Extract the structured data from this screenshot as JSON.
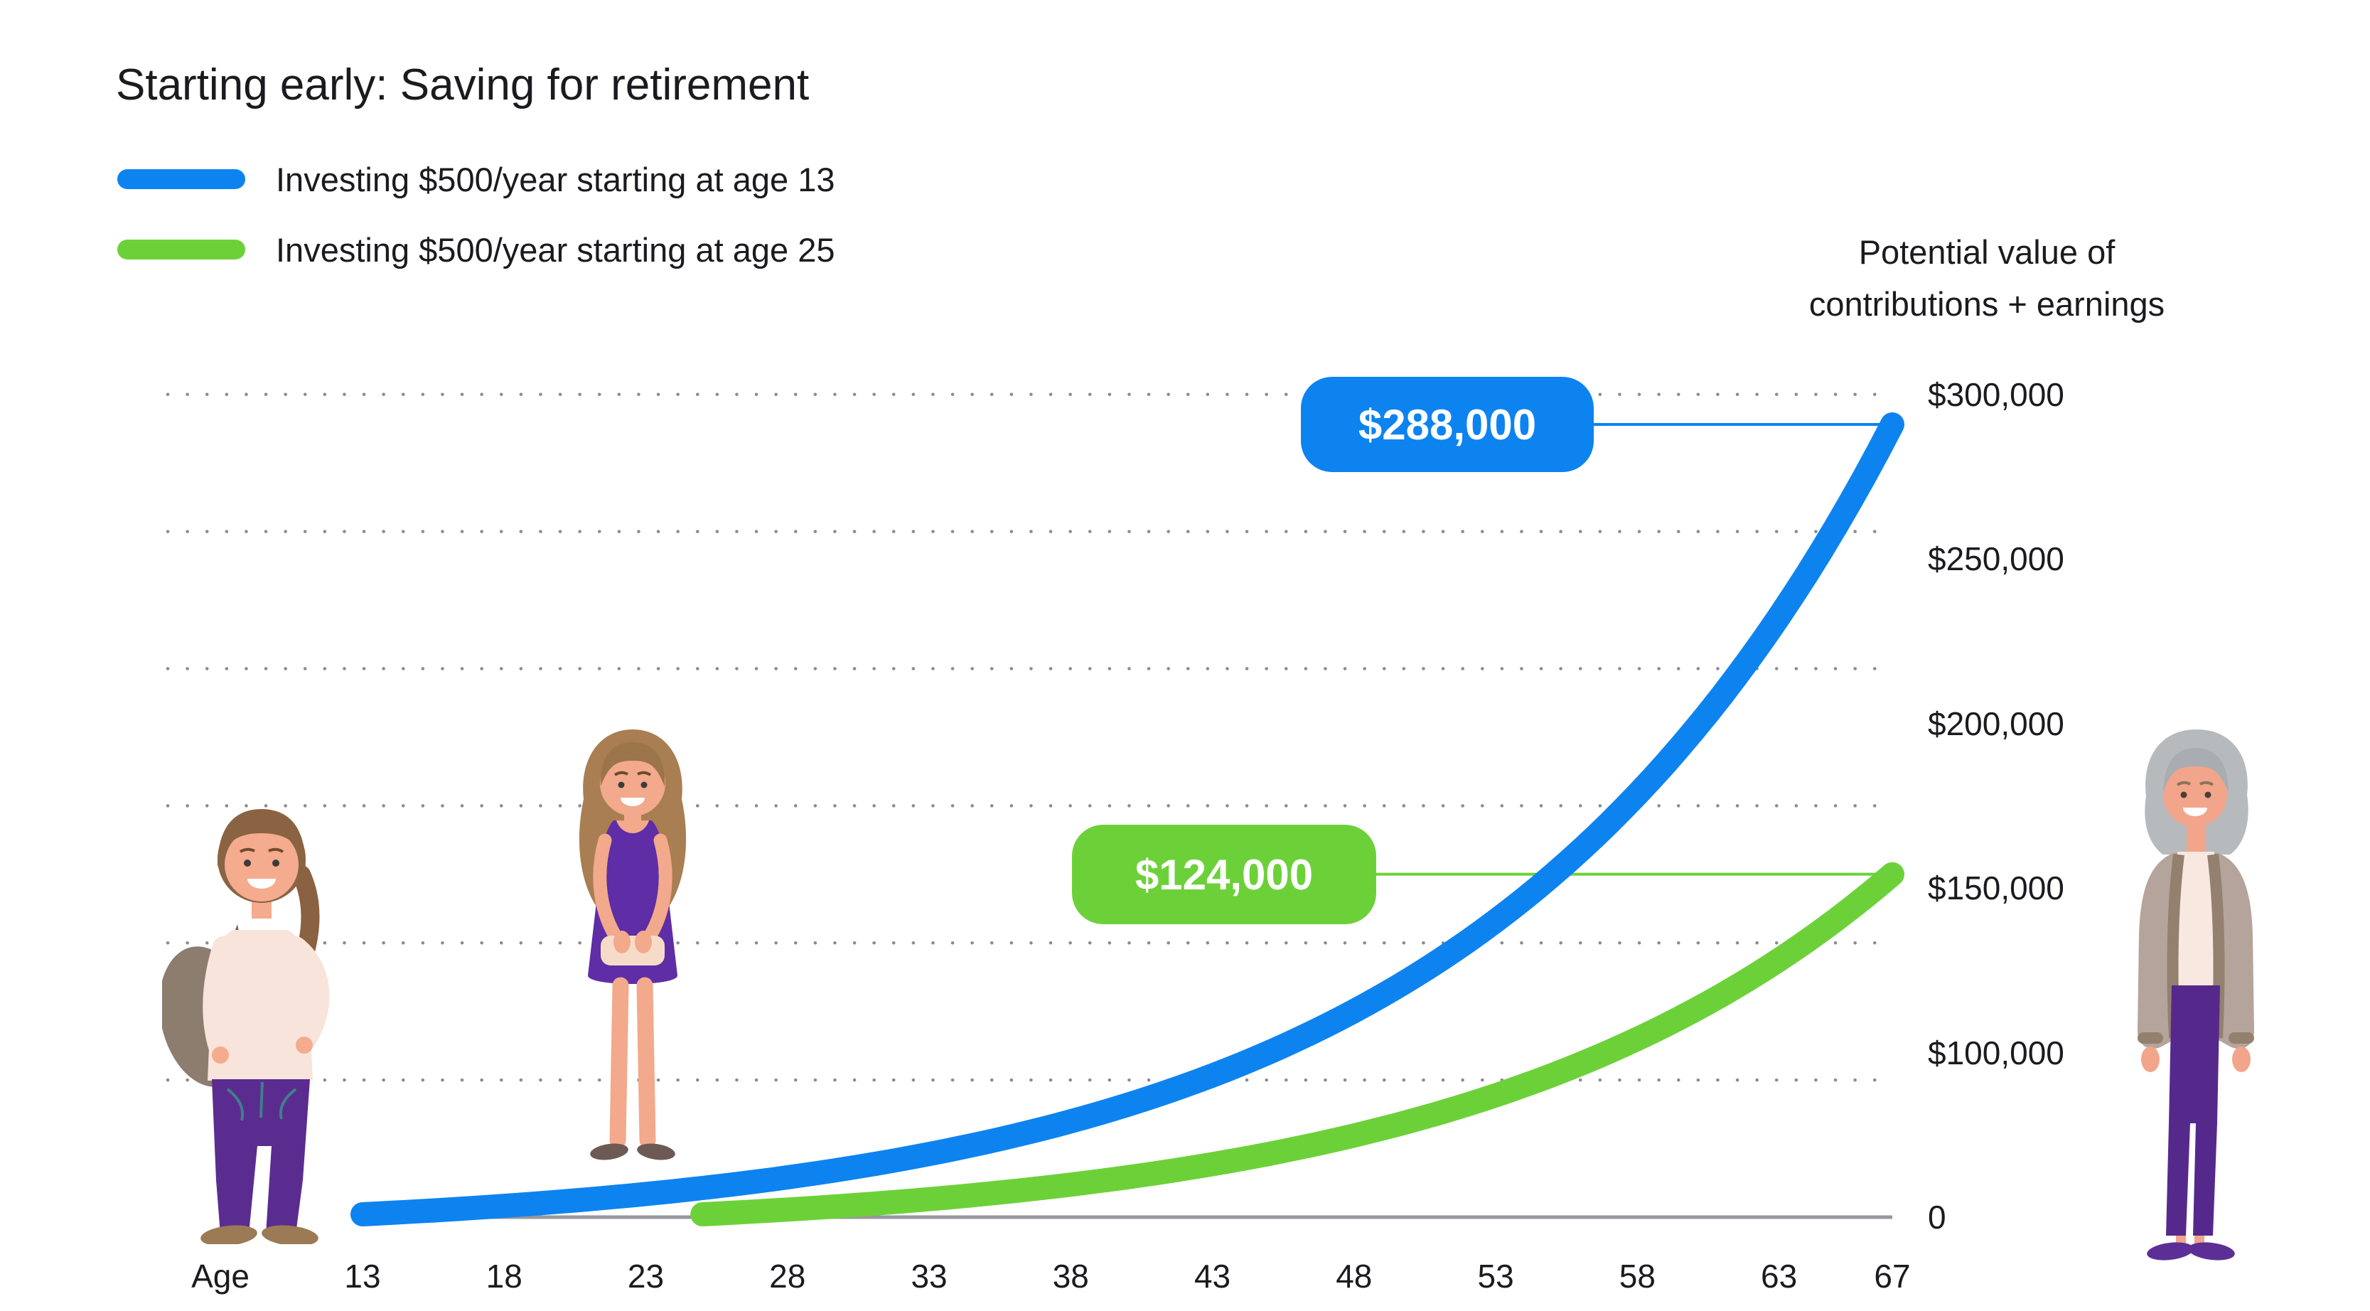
{
  "title": "Starting early: Saving for retirement",
  "legend": [
    {
      "label": "Investing $500/year starting at age 13",
      "color": "#0d83f0"
    },
    {
      "label": "Investing $500/year starting at age 25",
      "color": "#6cd139"
    }
  ],
  "y_axis_title": {
    "line1": "Potential value of",
    "line2": "contributions + earnings"
  },
  "x_axis_label": "Age",
  "callouts": [
    {
      "label": "$288,000",
      "series": "starting-at-13",
      "color": "#0d83f0"
    },
    {
      "label": "$124,000",
      "series": "starting-at-25",
      "color": "#6cd139"
    }
  ],
  "chart_data": {
    "type": "line",
    "title": "Starting early: Saving for retirement",
    "xlabel": "Age",
    "ylabel": "Potential value of contributions + earnings",
    "x_ticks": [
      13,
      18,
      23,
      28,
      33,
      38,
      43,
      48,
      53,
      58,
      63,
      67
    ],
    "y_tick_labels": [
      "$300,000",
      "$250,000",
      "$200,000",
      "$150,000",
      "$100,000",
      "0"
    ],
    "y_gridline_values_usd": [
      300000,
      250000,
      200000,
      150000,
      100000,
      50000
    ],
    "xlim": [
      13,
      67
    ],
    "ylim_usd": [
      0,
      310000
    ],
    "grid": "dotted-horizontal",
    "legend_position": "top-left",
    "curve_model": {
      "annual_return": 0.07,
      "contribution_per_year_usd": 500
    },
    "series": [
      {
        "name": "Investing $500/year starting at age 13",
        "color": "#0d83f0",
        "start_age": 13,
        "end_age": 67,
        "end_value_usd": 288000,
        "callout": "$288,000"
      },
      {
        "name": "Investing $500/year starting at age 25",
        "color": "#6cd139",
        "start_age": 25,
        "end_age": 67,
        "end_value_usd": 124000,
        "callout": "$124,000"
      }
    ]
  },
  "illustrations": [
    {
      "id": "teen-girl",
      "desc": "girl with backpack near age 13"
    },
    {
      "id": "young-woman",
      "desc": "woman in purple dress near age 25"
    },
    {
      "id": "older-woman",
      "desc": "retired woman at right of chart"
    }
  ],
  "colors": {
    "blue": "#0d83f0",
    "green": "#6cd139",
    "text": "#1b1b1f",
    "grid_dot": "#8b8b90",
    "axis": "#97979c",
    "background": "#ffffff"
  }
}
